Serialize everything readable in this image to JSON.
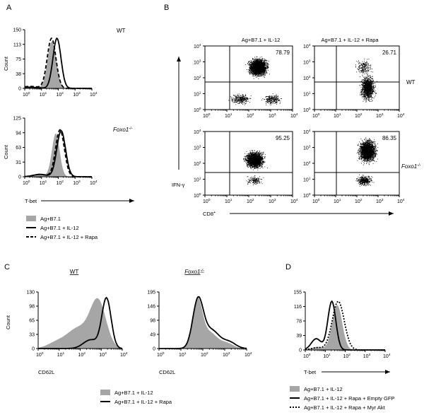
{
  "panels": {
    "A": {
      "letter": "A",
      "top": {
        "label": "WT",
        "ylabel": "Count",
        "yticks": [
          "0",
          "38",
          "75",
          "113",
          "150"
        ]
      },
      "bottom": {
        "label": "Foxo1",
        "label_sup": "-/-",
        "ylabel": "Count",
        "yticks": [
          "0",
          "31",
          "63",
          "94",
          "125"
        ]
      },
      "xlabel": "T-bet",
      "legend": [
        {
          "label": "Ag+B7.1",
          "style": "filled"
        },
        {
          "label": "Ag+B7.1 + IL-12",
          "style": "solid"
        },
        {
          "label": "Ag+B7.1 + IL-12 + Rapa",
          "style": "dashed"
        }
      ]
    },
    "B": {
      "letter": "B",
      "col_titles": [
        "Ag+B7.1 + IL-12",
        "Ag+B7.1 + IL-12 + Rapa"
      ],
      "row_labels": {
        "wt": "WT",
        "foxo": "Foxo1",
        "foxo_sup": "-/-"
      },
      "percentages": [
        "78.79",
        "26.71",
        "95.25",
        "86.35"
      ],
      "ylabel": "IFN-γ",
      "xlabel": "CD8",
      "xlabel_sup": "+"
    },
    "C": {
      "letter": "C",
      "left": {
        "title": "WT",
        "xlabel": "CD62L",
        "ylabel": "Count",
        "yticks": [
          "0",
          "33",
          "65",
          "98",
          "130"
        ]
      },
      "right": {
        "title": "Foxo1",
        "title_sup": "-/-",
        "xlabel": "CD62L",
        "yticks": [
          "0",
          "49",
          "98",
          "146",
          "195"
        ]
      },
      "legend": [
        {
          "label": "Ag+B7.1 + IL-12",
          "style": "filled"
        },
        {
          "label": "Ag+B7.1 + IL-12 + Rapa",
          "style": "solid"
        }
      ]
    },
    "D": {
      "letter": "D",
      "xlabel": "T-bet",
      "yticks": [
        "0",
        "39",
        "78",
        "116",
        "155"
      ],
      "legend": [
        {
          "label": "Ag+B7.1 + IL-12",
          "style": "filled"
        },
        {
          "label": "Ag+B7.1 + IL-12 + Rapa + Empty GFP",
          "style": "solid"
        },
        {
          "label": "Ag+B7.1 + IL-12 + Rapa + Myr Akt",
          "style": "dotted"
        }
      ]
    }
  },
  "axis": {
    "log_ticks": [
      {
        "base": "10",
        "exp": "0"
      },
      {
        "base": "10",
        "exp": "1"
      },
      {
        "base": "10",
        "exp": "2"
      },
      {
        "base": "10",
        "exp": "3"
      },
      {
        "base": "10",
        "exp": "4"
      }
    ]
  },
  "chart_data": [
    {
      "id": "A-top",
      "type": "histogram",
      "title": "WT",
      "xlabel": "T-bet",
      "ylabel": "Count",
      "xscale": "log",
      "xlim": [
        1,
        10000
      ],
      "ylim": [
        0,
        150
      ],
      "series": [
        {
          "name": "Ag+B7.1",
          "style": "filled",
          "peak_x": 45,
          "peak_y": 120
        },
        {
          "name": "Ag+B7.1 + IL-12",
          "style": "solid",
          "peak_x": 80,
          "peak_y": 128
        },
        {
          "name": "Ag+B7.1 + IL-12 + Rapa",
          "style": "dashed",
          "peak_x": 40,
          "peak_y": 128
        }
      ]
    },
    {
      "id": "A-bottom",
      "type": "histogram",
      "title": "Foxo1-/-",
      "xlabel": "T-bet",
      "ylabel": "Count",
      "xscale": "log",
      "xlim": [
        1,
        10000
      ],
      "ylim": [
        0,
        125
      ],
      "series": [
        {
          "name": "Ag+B7.1",
          "style": "filled",
          "peak_x": 70,
          "peak_y": 92
        },
        {
          "name": "Ag+B7.1 + IL-12",
          "style": "solid",
          "peak_x": 150,
          "peak_y": 98
        },
        {
          "name": "Ag+B7.1 + IL-12 + Rapa",
          "style": "dashed",
          "peak_x": 130,
          "peak_y": 100
        }
      ]
    },
    {
      "id": "B",
      "type": "scatter",
      "xlabel": "CD8+",
      "ylabel": "IFN-γ",
      "xscale": "log",
      "yscale": "log",
      "xlim": [
        1,
        10000
      ],
      "ylim": [
        1,
        10000
      ],
      "quadrant_gate_percent": [
        78.79,
        26.71,
        95.25,
        86.35
      ]
    },
    {
      "id": "C-left",
      "type": "histogram",
      "title": "WT",
      "xlabel": "CD62L",
      "ylabel": "Count",
      "xscale": "log",
      "xlim": [
        1,
        10000
      ],
      "ylim": [
        0,
        130
      ],
      "series": [
        {
          "name": "Ag+B7.1 + IL-12",
          "style": "filled",
          "peak_x": 700,
          "peak_y": 110
        },
        {
          "name": "Ag+B7.1 + IL-12 + Rapa",
          "style": "solid",
          "peak_x": 1800,
          "peak_y": 120
        }
      ]
    },
    {
      "id": "C-right",
      "type": "histogram",
      "title": "Foxo1-/-",
      "xlabel": "CD62L",
      "xscale": "log",
      "xlim": [
        1,
        10000
      ],
      "ylim": [
        0,
        195
      ],
      "series": [
        {
          "name": "Ag+B7.1 + IL-12",
          "style": "filled",
          "peak_x": 60,
          "peak_y": 160
        },
        {
          "name": "Ag+B7.1 + IL-12 + Rapa",
          "style": "solid",
          "peak_x": 65,
          "peak_y": 168
        }
      ]
    },
    {
      "id": "D",
      "type": "histogram",
      "xlabel": "T-bet",
      "xscale": "log",
      "xlim": [
        1,
        10000
      ],
      "ylim": [
        0,
        155
      ],
      "series": [
        {
          "name": "Ag+B7.1 + IL-12",
          "style": "filled",
          "peak_x": 40,
          "peak_y": 120
        },
        {
          "name": "Ag+B7.1 + IL-12 + Rapa + Empty GFP",
          "style": "solid",
          "peak_x": 22,
          "peak_y": 130
        },
        {
          "name": "Ag+B7.1 + IL-12 + Rapa + Myr Akt",
          "style": "dotted",
          "peak_x": 45,
          "peak_y": 130
        }
      ]
    }
  ]
}
